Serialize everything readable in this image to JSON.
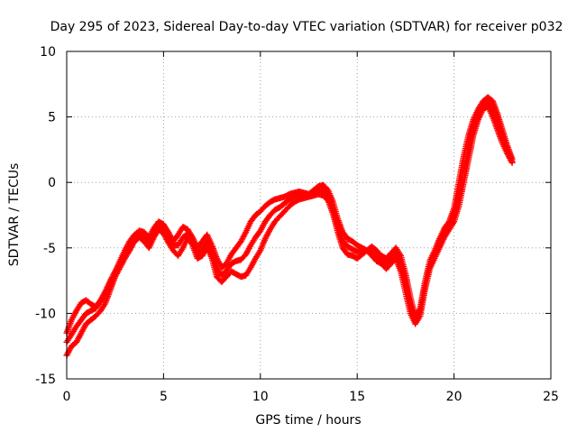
{
  "chart_data": {
    "type": "scatter",
    "title": "Day 295 of 2023, Sidereal Day-to-day VTEC variation (SDTVAR) for receiver p032",
    "xlabel": "GPS time / hours",
    "ylabel": "SDTVAR / TECUs",
    "xlim": [
      0,
      25
    ],
    "ylim": [
      -15,
      10
    ],
    "xticks": [
      0,
      5,
      10,
      15,
      20,
      25
    ],
    "yticks": [
      -15,
      -10,
      -5,
      0,
      5,
      10
    ],
    "grid": true,
    "marker": "+",
    "series": [
      {
        "name": "SDTVAR",
        "color": "#ff0000",
        "x": [
          0.0,
          0.25,
          0.5,
          0.75,
          1.0,
          1.25,
          1.5,
          1.75,
          2.0,
          2.25,
          2.5,
          2.75,
          3.0,
          3.25,
          3.5,
          3.75,
          4.0,
          4.25,
          4.5,
          4.75,
          5.0,
          5.25,
          5.5,
          5.75,
          6.0,
          6.25,
          6.5,
          6.75,
          7.0,
          7.25,
          7.5,
          7.75,
          8.0,
          8.25,
          8.5,
          8.75,
          9.0,
          9.25,
          9.5,
          9.75,
          10.0,
          10.25,
          10.5,
          10.75,
          11.0,
          11.25,
          11.5,
          11.75,
          12.0,
          12.25,
          12.5,
          12.75,
          13.0,
          13.25,
          13.5,
          13.75,
          14.0,
          14.25,
          14.5,
          14.75,
          15.0,
          15.25,
          15.5,
          15.75,
          16.0,
          16.25,
          16.5,
          16.75,
          17.0,
          17.25,
          17.5,
          17.75,
          18.0,
          18.25,
          18.5,
          18.75,
          19.0,
          19.25,
          19.5,
          19.75,
          20.0,
          20.25,
          20.5,
          20.75,
          21.0,
          21.25,
          21.5,
          21.75,
          22.0,
          22.25,
          22.5,
          22.75,
          23.0
        ],
        "y": [
          -11.5,
          -10.5,
          -9.8,
          -9.2,
          -9.0,
          -9.3,
          -9.5,
          -9.0,
          -8.3,
          -7.5,
          -6.8,
          -6.0,
          -5.2,
          -4.5,
          -4.0,
          -3.7,
          -3.8,
          -4.2,
          -3.5,
          -3.0,
          -3.2,
          -3.8,
          -4.5,
          -4.0,
          -3.4,
          -3.6,
          -4.2,
          -5.0,
          -4.5,
          -4.0,
          -4.8,
          -5.8,
          -6.5,
          -6.2,
          -5.5,
          -5.0,
          -4.5,
          -3.8,
          -3.0,
          -2.5,
          -2.2,
          -1.8,
          -1.5,
          -1.3,
          -1.2,
          -1.1,
          -0.9,
          -0.8,
          -0.7,
          -0.8,
          -0.9,
          -0.6,
          -0.3,
          -0.2,
          -0.6,
          -1.5,
          -2.8,
          -3.8,
          -4.3,
          -4.5,
          -4.8,
          -5.0,
          -5.2,
          -4.9,
          -5.2,
          -5.6,
          -5.8,
          -5.4,
          -5.0,
          -5.6,
          -7.0,
          -8.8,
          -10.3,
          -9.6,
          -7.6,
          -6.0,
          -5.2,
          -4.3,
          -3.5,
          -3.0,
          -2.0,
          0.0,
          2.0,
          3.6,
          4.8,
          5.6,
          6.2,
          6.5,
          6.2,
          5.2,
          4.0,
          2.8,
          1.8
        ]
      },
      {
        "name": "SDTVAR",
        "color": "#ff0000",
        "x": [
          0.0,
          0.25,
          0.5,
          0.75,
          1.0,
          1.25,
          1.5,
          1.75,
          2.0,
          2.25,
          2.5,
          2.75,
          3.0,
          3.25,
          3.5,
          3.75,
          4.0,
          4.25,
          4.5,
          4.75,
          5.0,
          5.25,
          5.5,
          5.75,
          6.0,
          6.25,
          6.5,
          6.75,
          7.0,
          7.25,
          7.5,
          7.75,
          8.0,
          8.25,
          8.5,
          8.75,
          9.0,
          9.25,
          9.5,
          9.75,
          10.0,
          10.25,
          10.5,
          10.75,
          11.0,
          11.25,
          11.5,
          11.75,
          12.0,
          12.25,
          12.5,
          12.75,
          13.0,
          13.25,
          13.5,
          13.75,
          14.0,
          14.25,
          14.5,
          14.75,
          15.0,
          15.25,
          15.5,
          15.75,
          16.0,
          16.25,
          16.5,
          16.75,
          17.0,
          17.25,
          17.5,
          17.75,
          18.0,
          18.25,
          18.5,
          18.75,
          19.0,
          19.25,
          19.5,
          19.75,
          20.0,
          20.25,
          20.5,
          20.75,
          21.0,
          21.25,
          21.5,
          21.75,
          22.0,
          22.25,
          22.5,
          22.75,
          23.0
        ],
        "y": [
          -13.2,
          -12.5,
          -12.2,
          -11.5,
          -10.8,
          -10.5,
          -10.2,
          -9.8,
          -9.2,
          -8.2,
          -7.2,
          -6.5,
          -5.8,
          -5.2,
          -4.5,
          -4.2,
          -4.5,
          -5.0,
          -4.2,
          -3.6,
          -3.9,
          -4.6,
          -5.2,
          -5.6,
          -5.0,
          -4.2,
          -4.8,
          -5.8,
          -5.6,
          -5.0,
          -5.8,
          -7.2,
          -7.6,
          -7.2,
          -6.8,
          -7.0,
          -7.2,
          -7.1,
          -6.5,
          -5.8,
          -5.2,
          -4.3,
          -3.6,
          -3.0,
          -2.6,
          -2.2,
          -1.8,
          -1.5,
          -1.3,
          -1.2,
          -1.1,
          -1.0,
          -0.9,
          -1.0,
          -1.4,
          -2.4,
          -3.8,
          -5.0,
          -5.5,
          -5.6,
          -5.8,
          -5.5,
          -5.2,
          -5.6,
          -6.0,
          -6.2,
          -6.6,
          -6.2,
          -5.8,
          -6.8,
          -8.4,
          -10.0,
          -10.8,
          -10.2,
          -8.2,
          -6.6,
          -5.8,
          -5.0,
          -4.2,
          -3.6,
          -3.0,
          -1.8,
          0.0,
          1.8,
          3.6,
          4.8,
          5.6,
          5.8,
          5.0,
          4.0,
          3.0,
          2.2,
          1.5
        ]
      },
      {
        "name": "SDTVAR",
        "color": "#ff0000",
        "x": [
          0.0,
          0.25,
          0.5,
          0.75,
          1.0,
          1.25,
          1.5,
          1.75,
          2.0,
          2.25,
          2.5,
          2.75,
          3.0,
          3.25,
          3.5,
          3.75,
          4.0,
          4.25,
          4.5,
          4.75,
          5.0,
          5.25,
          5.5,
          5.75,
          6.0,
          6.25,
          6.5,
          6.75,
          7.0,
          7.25,
          7.5,
          7.75,
          8.0,
          8.25,
          8.5,
          8.75,
          9.0,
          9.25,
          9.5,
          9.75,
          10.0,
          10.25,
          10.5,
          10.75,
          11.0,
          11.25,
          11.5,
          11.75,
          12.0,
          12.25,
          12.5,
          12.75,
          13.0,
          13.25,
          13.5,
          13.75,
          14.0,
          14.25,
          14.5,
          14.75,
          15.0,
          15.25,
          15.5,
          15.75,
          16.0,
          16.25,
          16.5,
          16.75,
          17.0,
          17.25,
          17.5,
          17.75,
          18.0,
          18.25,
          18.5,
          18.75,
          19.0,
          19.25,
          19.5,
          19.75,
          20.0,
          20.25,
          20.5,
          20.75,
          21.0,
          21.25,
          21.5,
          21.75,
          22.0,
          22.25,
          22.5,
          22.75,
          23.0
        ],
        "y": [
          -12.2,
          -11.6,
          -11.0,
          -10.5,
          -10.0,
          -9.8,
          -9.6,
          -9.1,
          -8.5,
          -7.7,
          -6.9,
          -6.2,
          -5.4,
          -4.8,
          -4.2,
          -3.9,
          -4.1,
          -4.6,
          -3.8,
          -3.3,
          -3.5,
          -4.1,
          -4.8,
          -4.8,
          -4.2,
          -3.9,
          -4.5,
          -5.4,
          -5.1,
          -4.5,
          -5.3,
          -6.5,
          -7.1,
          -6.7,
          -6.2,
          -6.0,
          -5.9,
          -5.5,
          -4.8,
          -4.2,
          -3.7,
          -3.0,
          -2.5,
          -2.1,
          -1.9,
          -1.6,
          -1.3,
          -1.1,
          -1.0,
          -1.0,
          -1.0,
          -0.8,
          -0.6,
          -0.6,
          -1.0,
          -2.0,
          -3.3,
          -4.4,
          -4.9,
          -5.1,
          -5.3,
          -5.2,
          -5.2,
          -5.2,
          -5.6,
          -5.9,
          -6.2,
          -5.8,
          -5.4,
          -6.2,
          -7.7,
          -9.4,
          -10.5,
          -9.9,
          -7.9,
          -6.3,
          -5.5,
          -4.6,
          -3.8,
          -3.3,
          -2.5,
          -0.9,
          1.0,
          2.7,
          4.2,
          5.2,
          5.9,
          6.1,
          5.6,
          4.6,
          3.5,
          2.5,
          1.6
        ]
      }
    ]
  }
}
